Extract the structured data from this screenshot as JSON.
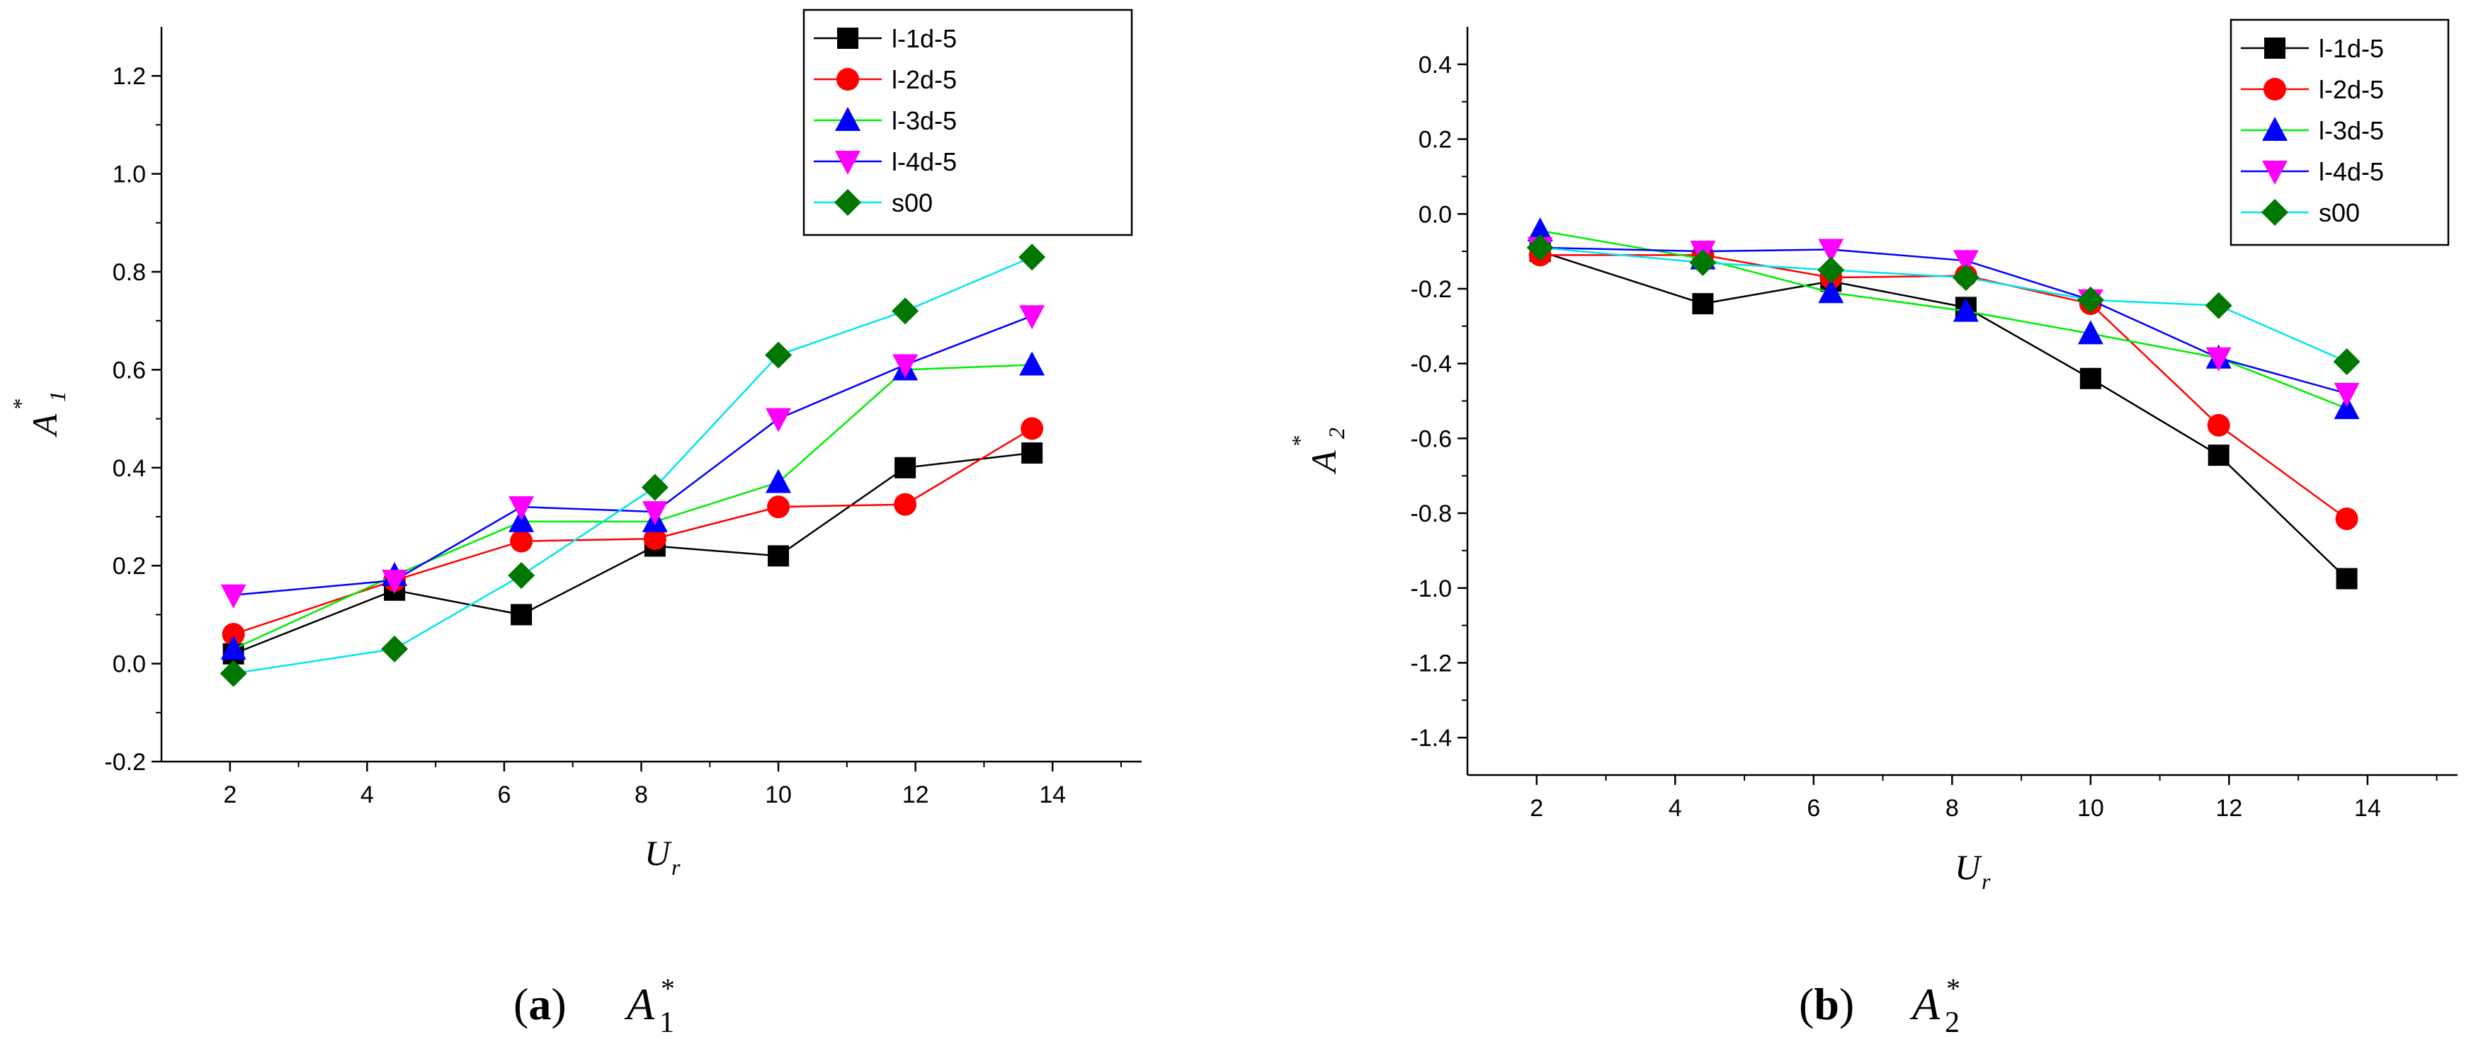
{
  "chart_data": [
    {
      "type": "line",
      "xlabel": "U",
      "xlabel_sub": "r",
      "ylabel": "A",
      "ylabel_sup": "*",
      "ylabel_sub": "1",
      "xlim": [
        1,
        15.3
      ],
      "ylim": [
        -0.2,
        1.3
      ],
      "xticks": [
        "2",
        "4",
        "6",
        "8",
        "10",
        "12",
        "14"
      ],
      "yticks": [
        "-0.2",
        "0.0",
        "0.2",
        "0.4",
        "0.6",
        "0.8",
        "1.0",
        "1.2"
      ],
      "legend_position": "top-right",
      "caption": {
        "label": "(a)",
        "symbol": "A",
        "sub": "1",
        "sup": "*"
      },
      "series": [
        {
          "name": "l-1d-5",
          "color": "#000000",
          "marker": "square",
          "x": [
            2.05,
            4.4,
            6.25,
            8.2,
            10.0,
            11.85,
            13.7
          ],
          "y": [
            0.02,
            0.15,
            0.1,
            0.24,
            0.22,
            0.4,
            0.43
          ]
        },
        {
          "name": "l-2d-5",
          "color": "#ff0000",
          "marker": "circle",
          "x": [
            2.05,
            4.4,
            6.25,
            8.2,
            10.0,
            11.85,
            13.7
          ],
          "y": [
            0.06,
            0.17,
            0.25,
            0.255,
            0.32,
            0.325,
            0.48
          ]
        },
        {
          "name": "l-3d-5",
          "color": "#00ee00",
          "marker": "triangle-up",
          "markerColor": "#0000ff",
          "x": [
            2.05,
            4.4,
            6.25,
            8.2,
            10.0,
            11.85,
            13.7
          ],
          "y": [
            0.03,
            0.18,
            0.29,
            0.29,
            0.37,
            0.6,
            0.61
          ]
        },
        {
          "name": "l-4d-5",
          "color": "#0000ff",
          "marker": "triangle-down",
          "markerColor": "#ff00ff",
          "x": [
            2.05,
            4.4,
            6.25,
            8.2,
            10.0,
            11.85,
            13.7
          ],
          "y": [
            0.14,
            0.17,
            0.32,
            0.31,
            0.5,
            0.61,
            0.71
          ]
        },
        {
          "name": "s00",
          "color": "#00e5ee",
          "marker": "diamond",
          "markerColor": "#007700",
          "x": [
            2.05,
            4.4,
            6.25,
            8.2,
            10.0,
            11.85,
            13.7
          ],
          "y": [
            -0.02,
            0.03,
            0.18,
            0.36,
            0.63,
            0.72,
            0.83
          ]
        }
      ]
    },
    {
      "type": "line",
      "xlabel": "U",
      "xlabel_sub": "r",
      "ylabel": "A",
      "ylabel_sup": "*",
      "ylabel_sub": "2",
      "xlim": [
        1,
        15.3
      ],
      "ylim": [
        -1.5,
        0.5
      ],
      "xticks": [
        "2",
        "4",
        "6",
        "8",
        "10",
        "12",
        "14"
      ],
      "yticks": [
        "-1.4",
        "-1.2",
        "-1.0",
        "-0.8",
        "-0.6",
        "-0.4",
        "-0.2",
        "0.0",
        "0.2",
        "0.4"
      ],
      "legend_position": "top-right",
      "caption": {
        "label": "(b)",
        "symbol": "A",
        "sub": "2",
        "sup": "*"
      },
      "series": [
        {
          "name": "l-1d-5",
          "color": "#000000",
          "marker": "square",
          "x": [
            2.05,
            4.4,
            6.25,
            8.2,
            10.0,
            11.85,
            13.7
          ],
          "y": [
            -0.1,
            -0.24,
            -0.18,
            -0.25,
            -0.44,
            -0.645,
            -0.975
          ]
        },
        {
          "name": "l-2d-5",
          "color": "#ff0000",
          "marker": "circle",
          "x": [
            2.05,
            4.4,
            6.25,
            8.2,
            10.0,
            11.85,
            13.7
          ],
          "y": [
            -0.11,
            -0.11,
            -0.17,
            -0.165,
            -0.24,
            -0.565,
            -0.815
          ]
        },
        {
          "name": "l-3d-5",
          "color": "#00ee00",
          "marker": "triangle-up",
          "markerColor": "#0000ff",
          "x": [
            2.05,
            4.4,
            6.25,
            8.2,
            10.0,
            11.85,
            13.7
          ],
          "y": [
            -0.045,
            -0.12,
            -0.21,
            -0.26,
            -0.32,
            -0.385,
            -0.52
          ]
        },
        {
          "name": "l-4d-5",
          "color": "#0000ff",
          "marker": "triangle-down",
          "markerColor": "#ff00ff",
          "x": [
            2.05,
            4.4,
            6.25,
            8.2,
            10.0,
            11.85,
            13.7
          ],
          "y": [
            -0.09,
            -0.1,
            -0.095,
            -0.125,
            -0.23,
            -0.385,
            -0.48
          ]
        },
        {
          "name": "s00",
          "color": "#00e5ee",
          "marker": "diamond",
          "markerColor": "#007700",
          "x": [
            2.05,
            4.4,
            6.25,
            8.2,
            10.0,
            11.85,
            13.7
          ],
          "y": [
            -0.09,
            -0.13,
            -0.15,
            -0.17,
            -0.23,
            -0.245,
            -0.395
          ]
        }
      ]
    }
  ]
}
